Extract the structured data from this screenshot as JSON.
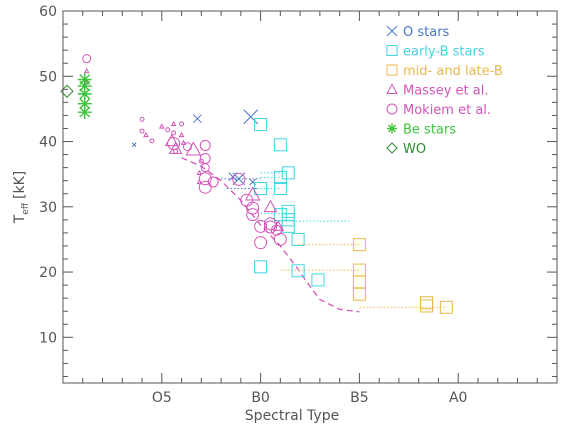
{
  "chart_data": {
    "type": "scatter",
    "title": "",
    "xlabel": "Spectral Type",
    "ylabel_main": "T",
    "ylabel_sub": "eff",
    "ylabel_unit": "[kK]",
    "xlim": [
      -5,
      20
    ],
    "ylim": [
      3,
      60
    ],
    "x_ticks": [
      {
        "value": 0,
        "label": "O5"
      },
      {
        "value": 5,
        "label": "B0"
      },
      {
        "value": 10,
        "label": "B5"
      },
      {
        "value": 15,
        "label": "A0"
      }
    ],
    "y_ticks": [
      10,
      20,
      30,
      40,
      50,
      60
    ],
    "legend_position": "top-right",
    "series": [
      {
        "name": "O stars",
        "marker": "x",
        "color": "#4a78c8",
        "points": [
          {
            "x": -1.4,
            "y": 39.5,
            "size": 2
          },
          {
            "x": 1.8,
            "y": 43.5,
            "size": 4
          },
          {
            "x": 3.9,
            "y": 34.3,
            "size": 6
          },
          {
            "x": 4.5,
            "y": 43.8,
            "size": 7
          },
          {
            "x": 3.6,
            "y": 34.6,
            "size": 4
          },
          {
            "x": 4.6,
            "y": 33.8,
            "size": 3
          }
        ]
      },
      {
        "name": "early-B stars",
        "marker": "square",
        "color": "#3fd6e0",
        "points": [
          {
            "x": 5.0,
            "y": 42.6,
            "size": 6
          },
          {
            "x": 6.0,
            "y": 39.5,
            "size": 6
          },
          {
            "x": 5.0,
            "y": 32.8,
            "size": 6
          },
          {
            "x": 6.0,
            "y": 34.5,
            "size": 6
          },
          {
            "x": 6.4,
            "y": 35.2,
            "size": 6
          },
          {
            "x": 6.0,
            "y": 32.8,
            "size": 6
          },
          {
            "x": 6.4,
            "y": 29.3,
            "size": 6
          },
          {
            "x": 6.0,
            "y": 28.8,
            "size": 6
          },
          {
            "x": 6.4,
            "y": 28.0,
            "size": 6
          },
          {
            "x": 6.4,
            "y": 27.0,
            "size": 6
          },
          {
            "x": 6.9,
            "y": 25.0,
            "size": 6
          },
          {
            "x": 5.0,
            "y": 20.8,
            "size": 6
          },
          {
            "x": 6.9,
            "y": 20.2,
            "size": 6
          },
          {
            "x": 7.9,
            "y": 18.8,
            "size": 6
          }
        ]
      },
      {
        "name": "mid- and late-B",
        "marker": "square",
        "color": "#e8b84a",
        "points": [
          {
            "x": 10.0,
            "y": 24.2,
            "size": 6
          },
          {
            "x": 10.0,
            "y": 20.3,
            "size": 6
          },
          {
            "x": 10.0,
            "y": 18.5,
            "size": 6
          },
          {
            "x": 10.0,
            "y": 16.6,
            "size": 6
          },
          {
            "x": 13.4,
            "y": 15.3,
            "size": 6
          },
          {
            "x": 13.4,
            "y": 14.8,
            "size": 6
          },
          {
            "x": 14.4,
            "y": 14.6,
            "size": 6
          }
        ]
      },
      {
        "name": "Massey et al.",
        "marker": "triangle",
        "color": "#d454b8",
        "points": [
          {
            "x": -0.8,
            "y": 41.0,
            "size": 2
          },
          {
            "x": 0.0,
            "y": 42.3,
            "size": 2
          },
          {
            "x": 0.6,
            "y": 42.7,
            "size": 2
          },
          {
            "x": 1.0,
            "y": 41.0,
            "size": 2
          },
          {
            "x": 1.1,
            "y": 39.8,
            "size": 2
          },
          {
            "x": 0.5,
            "y": 40.1,
            "size": 6
          },
          {
            "x": 0.7,
            "y": 38.9,
            "size": 6
          },
          {
            "x": 1.6,
            "y": 38.8,
            "size": 7
          },
          {
            "x": 1.9,
            "y": 35.2,
            "size": 2
          },
          {
            "x": 1.9,
            "y": 33.8,
            "size": 2
          },
          {
            "x": 4.6,
            "y": 31.9,
            "size": 7
          },
          {
            "x": 5.5,
            "y": 30.0,
            "size": 6
          },
          {
            "x": 5.9,
            "y": 27.0,
            "size": 5
          },
          {
            "x": -3.8,
            "y": 50.8,
            "size": 2
          },
          {
            "x": -3.8,
            "y": 49.2,
            "size": 2
          }
        ]
      },
      {
        "name": "Mokiem et al.",
        "marker": "circle",
        "color": "#d454b8",
        "points": [
          {
            "x": -3.8,
            "y": 52.7,
            "size": 4
          },
          {
            "x": -1.0,
            "y": 43.4,
            "size": 2
          },
          {
            "x": -1.0,
            "y": 41.6,
            "size": 2
          },
          {
            "x": -0.5,
            "y": 40.1,
            "size": 2
          },
          {
            "x": 0.3,
            "y": 41.8,
            "size": 2
          },
          {
            "x": 0.6,
            "y": 41.3,
            "size": 2
          },
          {
            "x": 1.0,
            "y": 42.7,
            "size": 2
          },
          {
            "x": 0.7,
            "y": 38.5,
            "size": 2
          },
          {
            "x": 0.6,
            "y": 39.7,
            "size": 6
          },
          {
            "x": 1.3,
            "y": 39.2,
            "size": 4
          },
          {
            "x": 2.0,
            "y": 37.0,
            "size": 2
          },
          {
            "x": 2.2,
            "y": 39.4,
            "size": 5
          },
          {
            "x": 2.2,
            "y": 37.4,
            "size": 5
          },
          {
            "x": 2.2,
            "y": 36.0,
            "size": 4
          },
          {
            "x": 2.2,
            "y": 34.3,
            "size": 6
          },
          {
            "x": 2.2,
            "y": 33.0,
            "size": 6
          },
          {
            "x": 2.6,
            "y": 33.8,
            "size": 5
          },
          {
            "x": 3.9,
            "y": 34.2,
            "size": 6
          },
          {
            "x": 4.3,
            "y": 31.0,
            "size": 6
          },
          {
            "x": 4.6,
            "y": 29.8,
            "size": 6
          },
          {
            "x": 4.6,
            "y": 28.8,
            "size": 6
          },
          {
            "x": 5.0,
            "y": 27.0,
            "size": 6
          },
          {
            "x": 5.5,
            "y": 27.4,
            "size": 6
          },
          {
            "x": 5.5,
            "y": 26.9,
            "size": 6
          },
          {
            "x": 5.0,
            "y": 24.5,
            "size": 6
          },
          {
            "x": 5.8,
            "y": 26.4,
            "size": 5
          },
          {
            "x": 6.0,
            "y": 25.0,
            "size": 6
          }
        ]
      },
      {
        "name": "Be stars",
        "marker": "asterisk",
        "color": "#3cc43c",
        "points": [
          {
            "x": -3.9,
            "y": 49.5,
            "size": 7
          },
          {
            "x": -3.9,
            "y": 48.5,
            "size": 7
          },
          {
            "x": -3.9,
            "y": 47.3,
            "size": 7
          },
          {
            "x": -3.9,
            "y": 45.8,
            "size": 7
          },
          {
            "x": -3.9,
            "y": 44.5,
            "size": 7
          }
        ]
      },
      {
        "name": "WO",
        "marker": "diamond",
        "color": "#2f8a2f",
        "points": [
          {
            "x": -4.8,
            "y": 47.7,
            "size": 6
          }
        ]
      }
    ],
    "dotted_lines": [
      {
        "color": "#4a78c8",
        "x": [
          3.0,
          5.0
        ],
        "y": 34.3
      },
      {
        "color": "#4a78c8",
        "x": [
          3.3,
          4.8
        ],
        "y": 32.8
      },
      {
        "color": "#3fd6e0",
        "x": [
          5.0,
          6.4
        ],
        "y": 35.2
      },
      {
        "color": "#3fd6e0",
        "x": [
          5.0,
          6.0
        ],
        "y": 34.5
      },
      {
        "color": "#3fd6e0",
        "x": [
          4.8,
          6.0
        ],
        "y": 32.8
      },
      {
        "color": "#3fd6e0",
        "x": [
          5.0,
          9.5
        ],
        "y": 27.8
      },
      {
        "color": "#3fd6e0",
        "x": [
          5.0,
          6.8
        ],
        "y": 29.0
      },
      {
        "color": "#e8b84a",
        "x": [
          6.9,
          10.0
        ],
        "y": 24.2
      },
      {
        "color": "#e8b84a",
        "x": [
          6.0,
          10.0
        ],
        "y": 20.3
      },
      {
        "color": "#e8b84a",
        "x": [
          10.0,
          14.4
        ],
        "y": 14.6
      }
    ],
    "fit_curve": {
      "color": "#d454b8",
      "x": [
        1.0,
        2.0,
        3.0,
        4.0,
        5.0,
        6.0,
        6.8,
        7.5,
        8.0,
        9.0,
        10.0
      ],
      "y": [
        37.5,
        36.2,
        34.0,
        31.0,
        27.2,
        24.0,
        20.8,
        17.8,
        15.8,
        14.3,
        13.9
      ]
    }
  }
}
